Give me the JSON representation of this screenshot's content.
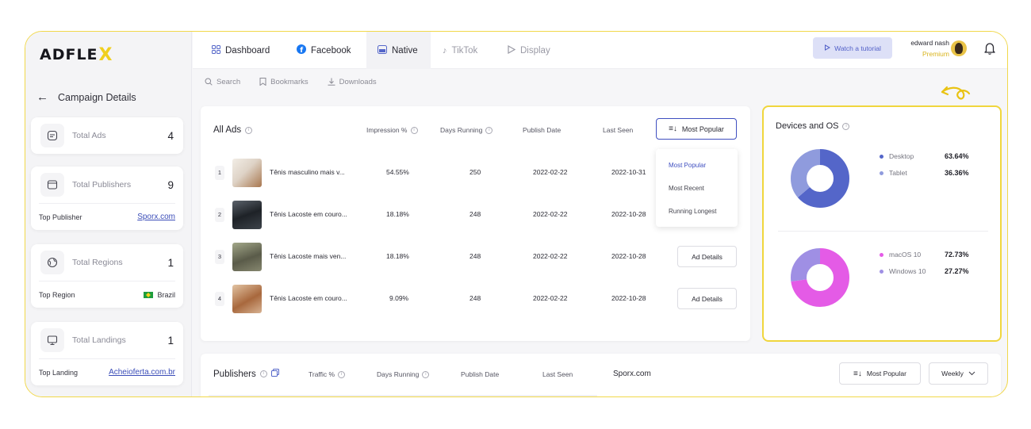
{
  "brand": {
    "logo_text": "ADFLE",
    "logo_x": "X"
  },
  "sidebar": {
    "back_label": "Campaign Details",
    "cards": [
      {
        "label": "Total Ads",
        "value": "4"
      },
      {
        "label": "Total Publishers",
        "value": "9",
        "foot_label": "Top Publisher",
        "foot_value": "Sporx.com"
      },
      {
        "label": "Total Regions",
        "value": "1",
        "foot_label": "Top Region",
        "foot_value": "Brazil"
      },
      {
        "label": "Total Landings",
        "value": "1",
        "foot_label": "Top Landing",
        "foot_value": "Acheioferta.com.br"
      }
    ]
  },
  "nav": {
    "tabs": [
      {
        "label": "Dashboard",
        "icon": "grid-icon"
      },
      {
        "label": "Facebook",
        "icon": "facebook-icon"
      },
      {
        "label": "Native",
        "icon": "native-icon"
      },
      {
        "label": "TikTok",
        "icon": "tiktok-icon"
      },
      {
        "label": "Display",
        "icon": "play-icon"
      }
    ],
    "active_tab": "Native",
    "watch_label": "Watch a tutorial",
    "user_name": "edward nash",
    "user_plan": "Premium"
  },
  "subnav": {
    "search": "Search",
    "bookmarks": "Bookmarks",
    "downloads": "Downloads"
  },
  "ads": {
    "title": "All Ads",
    "headers": {
      "impression": "Impression %",
      "days": "Days Running",
      "publish": "Publish Date",
      "seen": "Last Seen"
    },
    "sort_label": "Most Popular",
    "details_label": "Ad Details",
    "rows": [
      {
        "idx": "1",
        "name": "Tênis masculino mais v...",
        "impression": "54.55%",
        "days": "250",
        "publish": "2022-02-22",
        "seen": "2022-10-31",
        "thumb": "#c9a98d"
      },
      {
        "idx": "2",
        "name": "Tênis Lacoste em couro...",
        "impression": "18.18%",
        "days": "248",
        "publish": "2022-02-22",
        "seen": "2022-10-28",
        "thumb": "#2c3036"
      },
      {
        "idx": "3",
        "name": "Tênis Lacoste mais ven...",
        "impression": "18.18%",
        "days": "248",
        "publish": "2022-02-22",
        "seen": "2022-10-28",
        "thumb": "#6b6a52"
      },
      {
        "idx": "4",
        "name": "Tênis Lacoste em couro...",
        "impression": "9.09%",
        "days": "248",
        "publish": "2022-02-22",
        "seen": "2022-10-28",
        "thumb": "#b07a4f"
      }
    ],
    "dropdown": [
      "Most Popular",
      "Most Recent",
      "Running Longest"
    ]
  },
  "devices": {
    "title": "Devices and OS",
    "device_split": [
      {
        "name": "Desktop",
        "value": "63.64%",
        "color": "#5466c9"
      },
      {
        "name": "Tablet",
        "value": "36.36%",
        "color": "#8f9bdd"
      }
    ],
    "os_split": [
      {
        "name": "macOS 10",
        "value": "72.73%",
        "color": "#e45be6"
      },
      {
        "name": "Windows 10",
        "value": "27.27%",
        "color": "#9f8fe4"
      }
    ]
  },
  "publishers": {
    "title": "Publishers",
    "headers": {
      "traffic": "Traffic %",
      "days": "Days Running",
      "publish": "Publish Date",
      "seen": "Last Seen"
    },
    "top_value": "Sporx.com",
    "sort_label": "Most Popular",
    "period_label": "Weekly"
  }
}
